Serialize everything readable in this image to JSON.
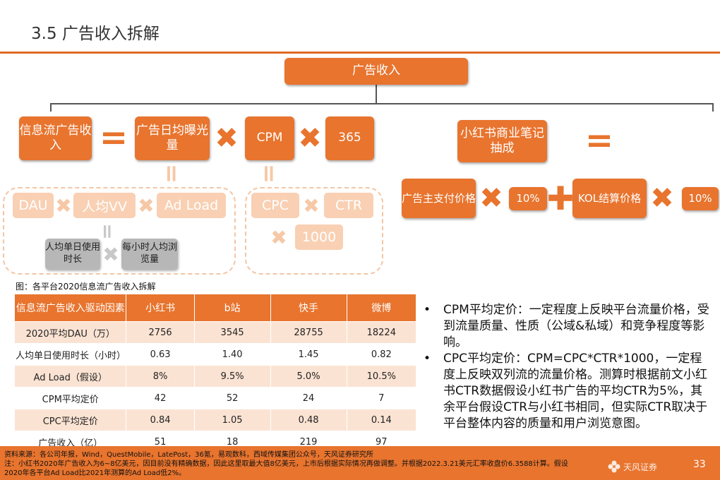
{
  "header": {
    "title": "3.5 广告收入拆解"
  },
  "diagram": {
    "top_box": "广告收入",
    "feed_ad_revenue": "信息流广告收入",
    "daily_ad_impressions": "广告日均曝光量",
    "cpm": "CPM",
    "days_365": "365",
    "xhs_notes_commission": "小红书商业笔记抽成",
    "advertiser_price": "广告主支付价格",
    "pct_a": "10%",
    "kol_price": "KOL结算价格",
    "pct_b": "10%",
    "dau": "DAU",
    "avg_vv": "人均VV",
    "ad_load": "Ad Load",
    "cpc": "CPC",
    "ctr": "CTR",
    "num_1000": "1000",
    "daily_time": "人均单日使用时长",
    "hourly_browse": "每小时人均浏览量",
    "op_times": "✖",
    "op_equals": "=",
    "op_plus": "✚"
  },
  "table": {
    "caption": "图：各平台2020信息流广告收入拆解",
    "headers": [
      "信息流广告收入驱动因素",
      "小红书",
      "b站",
      "快手",
      "微博"
    ],
    "rows": [
      [
        "2020平均DAU（万）",
        "2756",
        "3545",
        "28755",
        "18224"
      ],
      [
        "人均单日使用时长（小时）",
        "0.63",
        "1.40",
        "1.45",
        "0.82"
      ],
      [
        "Ad Load（假设）",
        "8%",
        "9.5%",
        "5.0%",
        "10.5%"
      ],
      [
        "CPM平均定价",
        "42",
        "52",
        "24",
        "7"
      ],
      [
        "CPC平均定价",
        "0.84",
        "1.05",
        "0.48",
        "0.14"
      ],
      [
        "广告收入（亿）",
        "51",
        "18",
        "219",
        "97"
      ]
    ]
  },
  "bullets": [
    "CPM平均定价：一定程度上反映平台流量价格，受到流量质量、性质（公域&私域）和竞争程度等影响。",
    "CPC平均定价：CPM=CPC*CTR*1000，一定程度上反映双列流的流量价格。测算时根据前文小红书CTR数据假设小红书广告的平均CTR为5%，其余平台假设CTR与小红书相同，但实际CTR取决于平台整体内容的质量和用户浏览意图。"
  ],
  "bullet_marker": "•",
  "footer": {
    "source": "资料来源：各公司年报，Wind，QuestMobile，LatePost，36氪，易观数科，西域传媒集团公众号，天风证券研究所",
    "note1": "注：小红书2020年广告收入为6~8亿美元，因目前没有精确数据，因此这里取最大值8亿美元，上市后根据实际情况再做调整。并根据2022.3.21美元汇率收盘价6.3588计算。假设",
    "note2": "2020年各平台Ad Load比2021年测算的Ad Load低2%。",
    "logo_text": "天风证券",
    "page": "33"
  },
  "colors": {
    "accent": "#e8742e",
    "light_accent": "#f9d0b3",
    "row_alt": "#fbe3d3",
    "gray_box": "#b7b7b7"
  }
}
